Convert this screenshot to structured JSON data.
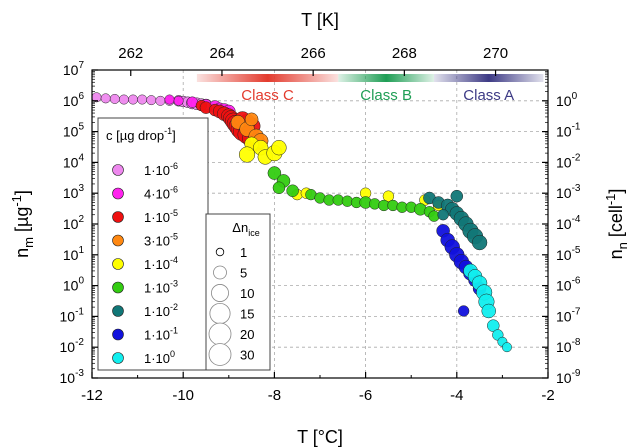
{
  "chart_data": {
    "type": "scatter",
    "x_bottom": {
      "label": "T [°C]",
      "range": [
        -12,
        -2
      ],
      "ticks": [
        "-12",
        "-10",
        "-8",
        "-6",
        "-4",
        "-2"
      ]
    },
    "x_top": {
      "label": "T [K]",
      "ticks": [
        "262",
        "264",
        "266",
        "268",
        "270"
      ],
      "tick_values_c": [
        -11.15,
        -9.15,
        -7.15,
        -5.15,
        -3.15
      ]
    },
    "y_left": {
      "label_base": "n",
      "label_sub": "m",
      "label_unit": " [µg",
      "label_exp": "-1",
      "label_close": "]",
      "scale": "log",
      "range_exp": [
        -3,
        7
      ],
      "ticks": [
        {
          "exp": -3,
          "base": "10",
          "sup": "-3"
        },
        {
          "exp": -2,
          "base": "10",
          "sup": "-2"
        },
        {
          "exp": -1,
          "base": "10",
          "sup": "-1"
        },
        {
          "exp": 0,
          "base": "10",
          "sup": "0"
        },
        {
          "exp": 1,
          "base": "10",
          "sup": "1"
        },
        {
          "exp": 2,
          "base": "10",
          "sup": "2"
        },
        {
          "exp": 3,
          "base": "10",
          "sup": "3"
        },
        {
          "exp": 4,
          "base": "10",
          "sup": "4"
        },
        {
          "exp": 5,
          "base": "10",
          "sup": "5"
        },
        {
          "exp": 6,
          "base": "10",
          "sup": "6"
        },
        {
          "exp": 7,
          "base": "10",
          "sup": "7"
        }
      ]
    },
    "y_right": {
      "label_base": "n",
      "label_sub": "n",
      "label_unit": " [cell",
      "label_exp": "-1",
      "label_close": "]",
      "scale": "log",
      "offset_exp_from_left": -6,
      "ticks": [
        {
          "exp": -9,
          "base": "10",
          "sup": "-9"
        },
        {
          "exp": -8,
          "base": "10",
          "sup": "-8"
        },
        {
          "exp": -7,
          "base": "10",
          "sup": "-7"
        },
        {
          "exp": -6,
          "base": "10",
          "sup": "-6"
        },
        {
          "exp": -5,
          "base": "10",
          "sup": "-5"
        },
        {
          "exp": -4,
          "base": "10",
          "sup": "-4"
        },
        {
          "exp": -3,
          "base": "10",
          "sup": "-3"
        },
        {
          "exp": -2,
          "base": "10",
          "sup": "-2"
        },
        {
          "exp": -1,
          "base": "10",
          "sup": "-1"
        },
        {
          "exp": 0,
          "base": "10",
          "sup": "0"
        }
      ]
    },
    "grid": true,
    "classes": [
      {
        "name": "Class C",
        "from": -9.7,
        "to": -6.6,
        "color": "#e33b2e"
      },
      {
        "name": "Class B",
        "from": -6.6,
        "to": -4.5,
        "color": "#1f9e55"
      },
      {
        "name": "Class A",
        "from": -4.5,
        "to": -2.1,
        "color": "#3d3a85"
      }
    ],
    "legend_color": {
      "title_prefix": "c [µg drop",
      "title_exp": "-1",
      "title_suffix": "]",
      "placement": "left",
      "items": [
        {
          "label": "1·10",
          "exp": "-6",
          "color": "#ee88ee"
        },
        {
          "label": "4·10",
          "exp": "-6",
          "color": "#ff22ee"
        },
        {
          "label": "1·10",
          "exp": "-5",
          "color": "#ee1111"
        },
        {
          "label": "3·10",
          "exp": "-5",
          "color": "#ff8811"
        },
        {
          "label": "1·10",
          "exp": "-4",
          "color": "#ffff00"
        },
        {
          "label": "1·10",
          "exp": "-3",
          "color": "#33cc11"
        },
        {
          "label": "1·10",
          "exp": "-2",
          "color": "#117777"
        },
        {
          "label": "1·10",
          "exp": "-1",
          "color": "#1111dd"
        },
        {
          "label": "1·10",
          "exp": "0",
          "color": "#11eeee"
        }
      ]
    },
    "legend_size": {
      "title": "Δn",
      "title_sub": "ice",
      "placement": "center-left",
      "items": [
        {
          "label": "1",
          "value": 1
        },
        {
          "label": "5",
          "value": 5
        },
        {
          "label": "10",
          "value": 10
        },
        {
          "label": "15",
          "value": 15
        },
        {
          "label": "20",
          "value": 20
        },
        {
          "label": "30",
          "value": 30
        }
      ]
    },
    "series": [
      {
        "color": "#ee88ee",
        "points": [
          [
            -11.9,
            1300000.0,
            2
          ],
          [
            -11.7,
            1200000.0,
            2
          ],
          [
            -11.5,
            1150000.0,
            2
          ],
          [
            -11.3,
            1100000.0,
            2
          ],
          [
            -11.1,
            1100000.0,
            2
          ],
          [
            -10.9,
            1100000.0,
            2
          ],
          [
            -10.7,
            1050000.0,
            2
          ],
          [
            -10.5,
            1000000.0,
            2
          ],
          [
            -10.3,
            1000000.0,
            2
          ],
          [
            -10.1,
            1000000.0,
            3
          ],
          [
            -10.0,
            950000.0,
            3
          ],
          [
            -9.9,
            900000.0,
            3
          ],
          [
            -9.8,
            850000.0,
            4
          ],
          [
            -9.7,
            800000.0,
            4
          ],
          [
            -9.6,
            750000.0,
            4
          ],
          [
            -9.5,
            700000.0,
            5
          ]
        ]
      },
      {
        "color": "#ff22ee",
        "points": [
          [
            -10.3,
            1100000.0,
            2
          ],
          [
            -10.1,
            1000000.0,
            2
          ],
          [
            -9.8,
            900000.0,
            3
          ],
          [
            -9.5,
            750000.0,
            3
          ],
          [
            -9.3,
            650000.0,
            4
          ],
          [
            -9.2,
            550000.0,
            4
          ],
          [
            -9.1,
            500000.0,
            5
          ],
          [
            -9.0,
            450000.0,
            5
          ]
        ]
      },
      {
        "color": "#ee1111",
        "points": [
          [
            -9.6,
            700000.0,
            3
          ],
          [
            -9.5,
            600000.0,
            4
          ],
          [
            -9.3,
            500000.0,
            4
          ],
          [
            -9.2,
            450000.0,
            5
          ],
          [
            -9.1,
            380000.0,
            6
          ],
          [
            -9.0,
            320000.0,
            7
          ],
          [
            -8.95,
            270000.0,
            8
          ],
          [
            -8.9,
            220000.0,
            9
          ],
          [
            -8.85,
            180000.0,
            10
          ],
          [
            -8.8,
            150000.0,
            11
          ],
          [
            -8.75,
            120000.0,
            12
          ],
          [
            -8.7,
            100000.0,
            12
          ],
          [
            -8.6,
            80000.0,
            12
          ],
          [
            -8.5,
            60000.0,
            12
          ],
          [
            -8.4,
            45000.0,
            11
          ],
          [
            -8.5,
            150000.0,
            10
          ],
          [
            -8.6,
            200000.0,
            9
          ],
          [
            -8.7,
            250000.0,
            8
          ]
        ]
      },
      {
        "color": "#ff8811",
        "points": [
          [
            -8.8,
            200000.0,
            6
          ],
          [
            -8.6,
            120000.0,
            7
          ],
          [
            -8.4,
            70000.0,
            7
          ],
          [
            -8.3,
            50000.0,
            7
          ],
          [
            -8.5,
            250000.0,
            5
          ]
        ]
      },
      {
        "color": "#ffff00",
        "points": [
          [
            -8.5,
            40000.0,
            6
          ],
          [
            -8.3,
            30000.0,
            7
          ],
          [
            -8.6,
            18000.0,
            8
          ],
          [
            -8.2,
            15000.0,
            7
          ],
          [
            -8.0,
            20000.0,
            8
          ],
          [
            -7.9,
            30000.0,
            7
          ],
          [
            -7.5,
            900.0,
            3
          ],
          [
            -7.3,
            1000.0,
            3
          ],
          [
            -6.0,
            1000.0,
            3
          ],
          [
            -5.5,
            800.0,
            3
          ],
          [
            -4.7,
            600.0,
            3
          ],
          [
            -4.4,
            400.0,
            3
          ]
        ]
      },
      {
        "color": "#33cc11",
        "points": [
          [
            -8.0,
            4500.0,
            5
          ],
          [
            -7.8,
            2500.0,
            5
          ],
          [
            -7.9,
            1500.0,
            4
          ],
          [
            -7.6,
            1200.0,
            4
          ],
          [
            -7.2,
            900.0,
            3
          ],
          [
            -7.0,
            700.0,
            3
          ],
          [
            -6.8,
            600.0,
            3
          ],
          [
            -6.6,
            600.0,
            3
          ],
          [
            -6.4,
            550.0,
            3
          ],
          [
            -6.2,
            500.0,
            3
          ],
          [
            -6.0,
            500.0,
            4
          ],
          [
            -5.8,
            450.0,
            3
          ],
          [
            -5.6,
            400.0,
            3
          ],
          [
            -5.4,
            400.0,
            3
          ],
          [
            -5.2,
            350.0,
            3
          ],
          [
            -5.0,
            350.0,
            3
          ],
          [
            -4.8,
            300.0,
            4
          ],
          [
            -4.6,
            250.0,
            3
          ],
          [
            -4.5,
            180.0,
            3
          ]
        ]
      },
      {
        "color": "#117777",
        "points": [
          [
            -4.6,
            700.0,
            4
          ],
          [
            -4.4,
            500.0,
            4
          ],
          [
            -4.2,
            400.0,
            5
          ],
          [
            -4.1,
            300.0,
            6
          ],
          [
            -4.0,
            220.0,
            6
          ],
          [
            -3.9,
            150.0,
            7
          ],
          [
            -3.8,
            100.0,
            7
          ],
          [
            -3.7,
            60.0,
            8
          ],
          [
            -3.6,
            40.0,
            8
          ],
          [
            -3.5,
            25.0,
            7
          ],
          [
            -4.0,
            800.0,
            4
          ],
          [
            -4.3,
            200.0,
            3
          ]
        ]
      },
      {
        "color": "#1111dd",
        "points": [
          [
            -4.3,
            60.0,
            5
          ],
          [
            -4.2,
            30.0,
            6
          ],
          [
            -4.1,
            18.0,
            7
          ],
          [
            -4.0,
            10.0,
            7
          ],
          [
            -3.9,
            6.0,
            7
          ],
          [
            -3.8,
            4.0,
            6
          ],
          [
            -3.7,
            2.5,
            6
          ],
          [
            -3.6,
            1.5,
            5
          ],
          [
            -3.5,
            0.8,
            5
          ],
          [
            -3.85,
            0.15,
            3
          ]
        ]
      },
      {
        "color": "#11eeee",
        "points": [
          [
            -3.7,
            3.0,
            6
          ],
          [
            -3.6,
            2.0,
            6
          ],
          [
            -3.5,
            1.2,
            7
          ],
          [
            -3.4,
            0.6,
            8
          ],
          [
            -3.35,
            0.3,
            8
          ],
          [
            -3.3,
            0.15,
            6
          ],
          [
            -3.2,
            0.05,
            4
          ],
          [
            -3.1,
            0.025,
            3
          ],
          [
            -3.0,
            0.015,
            2
          ],
          [
            -2.9,
            0.01,
            2
          ]
        ]
      }
    ]
  }
}
